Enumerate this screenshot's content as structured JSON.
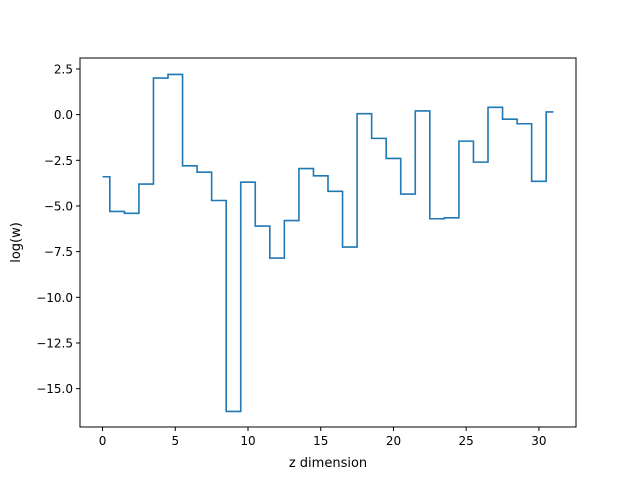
{
  "chart_data": {
    "type": "line",
    "drawstyle": "steps-mid",
    "title": "",
    "xlabel": "z dimension",
    "ylabel": "log(w)",
    "xlim": [
      -1.55,
      32.55
    ],
    "ylim": [
      -17.1,
      3.1
    ],
    "xticks": [
      0,
      5,
      10,
      15,
      20,
      25,
      30
    ],
    "xtick_labels": [
      "0",
      "5",
      "10",
      "15",
      "20",
      "25",
      "30"
    ],
    "yticks": [
      2.5,
      0.0,
      -2.5,
      -5.0,
      -7.5,
      -10.0,
      -12.5,
      -15.0
    ],
    "ytick_labels": [
      "2.5",
      "0.0",
      "−2.5",
      "−5.0",
      "−7.5",
      "−10.0",
      "−12.5",
      "−15.0"
    ],
    "grid": false,
    "series": [
      {
        "name": "",
        "color": "#1f77b4",
        "x": [
          0,
          1,
          2,
          3,
          4,
          5,
          6,
          7,
          8,
          9,
          10,
          11,
          12,
          13,
          14,
          15,
          16,
          17,
          18,
          19,
          20,
          21,
          22,
          23,
          24,
          25,
          26,
          27,
          28,
          29,
          30,
          31
        ],
        "y": [
          -3.4,
          -5.3,
          -5.4,
          -3.8,
          2.0,
          2.2,
          -2.8,
          -3.15,
          -4.7,
          -16.25,
          -3.7,
          -6.1,
          -7.85,
          -5.8,
          -2.95,
          -3.35,
          -4.2,
          -7.25,
          0.05,
          -1.3,
          -2.4,
          -4.35,
          0.2,
          -5.7,
          -5.65,
          -1.45,
          -2.6,
          0.4,
          -0.25,
          -0.5,
          -3.65,
          0.15
        ]
      }
    ]
  }
}
